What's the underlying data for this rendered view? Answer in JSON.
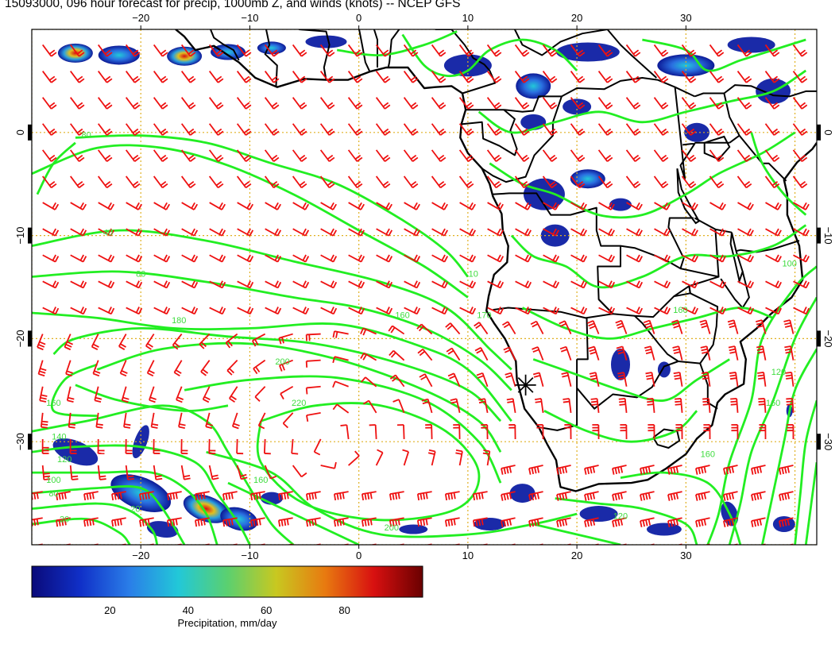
{
  "title": "15093000, 096 hour forecast for precip, 1000mb Z, and winds (knots) -- NCEP GFS",
  "map": {
    "lon_min": -30,
    "lon_max": 42,
    "lat_min": -40,
    "lat_max": 10,
    "lon_ticks": [
      -20,
      -10,
      0,
      10,
      20,
      30
    ],
    "lat_ticks": [
      0,
      -10,
      -20,
      -30
    ],
    "lon_tick_labels": [
      "−20",
      "−10",
      "0",
      "10",
      "20",
      "30"
    ],
    "lat_tick_labels": [
      "0",
      "−10",
      "−20",
      "−30"
    ],
    "grid": true,
    "grid_color": "#e0b020",
    "coast_color": "#000000",
    "contour_color": "#22ee22",
    "barb_color": "#ee1111",
    "marker_symbol": "✳",
    "marker_lon": 15.3,
    "marker_lat": -24.5
  },
  "contours": {
    "labels": [
      {
        "text": "80",
        "lon": -25,
        "lat": -0.5
      },
      {
        "text": "40",
        "lon": -23,
        "lat": -10
      },
      {
        "text": "80",
        "lon": -20,
        "lat": -14
      },
      {
        "text": "180",
        "lon": -16.5,
        "lat": -18.5
      },
      {
        "text": "160",
        "lon": 4,
        "lat": -18
      },
      {
        "text": "170",
        "lon": 11.5,
        "lat": -18
      },
      {
        "text": "200",
        "lon": -7,
        "lat": -22.5
      },
      {
        "text": "220",
        "lon": -5.5,
        "lat": -26.5
      },
      {
        "text": "160",
        "lon": -28,
        "lat": -26.5
      },
      {
        "text": "140",
        "lon": -27.5,
        "lat": -29.8
      },
      {
        "text": "120",
        "lon": -27,
        "lat": -32
      },
      {
        "text": "100",
        "lon": -28,
        "lat": -34
      },
      {
        "text": "80",
        "lon": -28,
        "lat": -35.3
      },
      {
        "text": "20",
        "lon": -27,
        "lat": -37.8
      },
      {
        "text": "20",
        "lon": -20.5,
        "lat": -36.8
      },
      {
        "text": "160",
        "lon": -9,
        "lat": -34
      },
      {
        "text": "200",
        "lon": 3,
        "lat": -38.6
      },
      {
        "text": "100",
        "lon": 39.5,
        "lat": -13
      },
      {
        "text": "160",
        "lon": 29.5,
        "lat": -17.5
      },
      {
        "text": "120",
        "lon": 38.5,
        "lat": -23.5
      },
      {
        "text": "160",
        "lon": 38,
        "lat": -26.5
      },
      {
        "text": "160",
        "lon": 32,
        "lat": -31.5
      },
      {
        "text": "120",
        "lon": 24,
        "lat": -37.5
      },
      {
        "text": "10",
        "lon": 10.5,
        "lat": -14
      }
    ]
  },
  "colorbar": {
    "min": 0,
    "max": 100,
    "tick_values": [
      20,
      40,
      60,
      80
    ],
    "tick_labels": [
      "20",
      "40",
      "60",
      "80"
    ],
    "label": "Precipitation, mm/day",
    "stops": [
      "#0a0a7a",
      "#1030c8",
      "#2a7ee8",
      "#22c8d8",
      "#5ad070",
      "#c8c820",
      "#e87a10",
      "#d81010",
      "#6a0000"
    ]
  }
}
